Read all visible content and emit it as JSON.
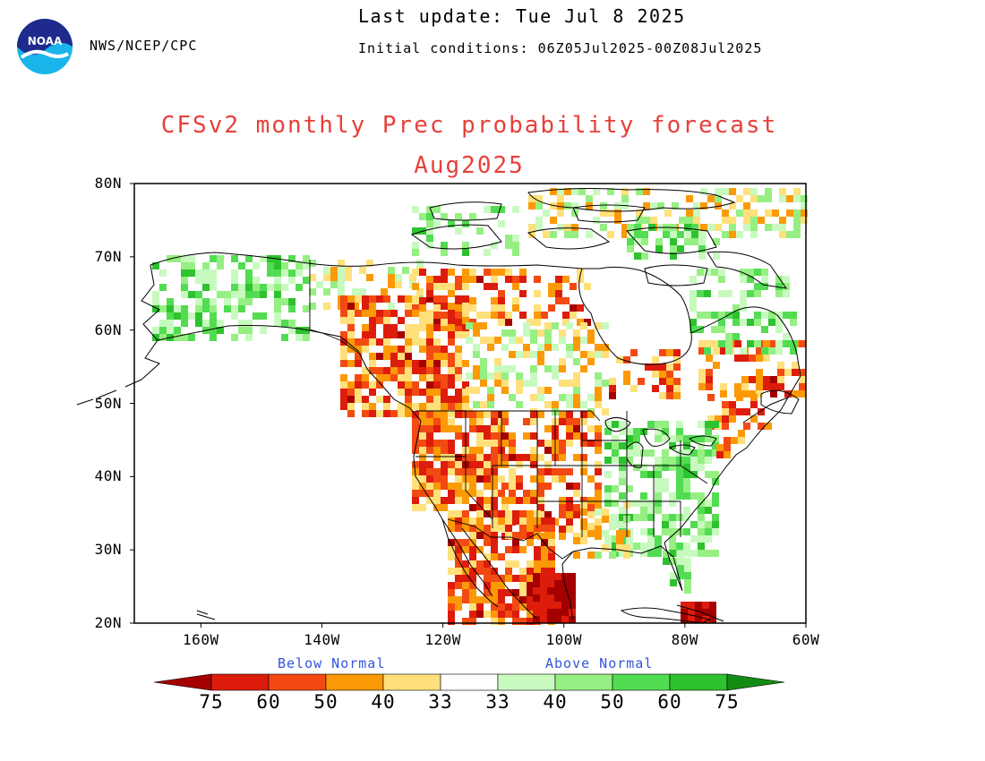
{
  "header": {
    "agency": "NWS/NCEP/CPC",
    "last_update": "Last update: Tue Jul 8 2025",
    "initial_conditions": "Initial conditions: 06Z05Jul2025-00Z08Jul2025",
    "logo_text": "NOAA"
  },
  "title": {
    "line1": "CFSv2 monthly Prec probability forecast",
    "line2": "Aug2025"
  },
  "map": {
    "lat_labels": [
      "80N",
      "70N",
      "60N",
      "50N",
      "40N",
      "30N",
      "20N"
    ],
    "lon_labels": [
      "160W",
      "140W",
      "120W",
      "100W",
      "80W",
      "60W"
    ],
    "lat_range": [
      20,
      80
    ],
    "lon_range": [
      -171,
      -60
    ],
    "categories": {
      "below": {
        "label": "Below Normal",
        "colors": [
          "#a50000",
          "#dd1c0c",
          "#f24a12",
          "#fb9a06",
          "#ffe07a"
        ]
      },
      "above": {
        "label": "Above Normal",
        "colors": [
          "#c8fac0",
          "#96ef82",
          "#52dc52",
          "#2ec22e",
          "#148c14"
        ]
      }
    },
    "legend_labels": [
      "75",
      "60",
      "50",
      "40",
      "33",
      "33",
      "40",
      "50",
      "60",
      "75"
    ]
  }
}
